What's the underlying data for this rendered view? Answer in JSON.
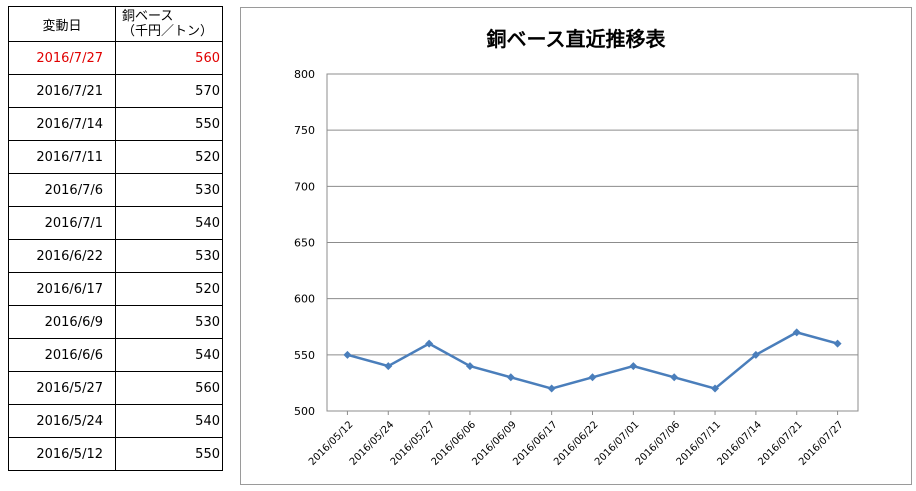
{
  "table": {
    "header_date": "変動日",
    "header_price_line1": "銅ベース",
    "header_price_line2": "（千円／トン）",
    "rows": [
      {
        "date": "2016/7/27",
        "price": "560"
      },
      {
        "date": "2016/7/21",
        "price": "570"
      },
      {
        "date": "2016/7/14",
        "price": "550"
      },
      {
        "date": "2016/7/11",
        "price": "520"
      },
      {
        "date": "2016/7/6",
        "price": "530"
      },
      {
        "date": "2016/7/1",
        "price": "540"
      },
      {
        "date": "2016/6/22",
        "price": "530"
      },
      {
        "date": "2016/6/17",
        "price": "520"
      },
      {
        "date": "2016/6/9",
        "price": "530"
      },
      {
        "date": "2016/6/6",
        "price": "540"
      },
      {
        "date": "2016/5/27",
        "price": "560"
      },
      {
        "date": "2016/5/24",
        "price": "540"
      },
      {
        "date": "2016/5/12",
        "price": "550"
      }
    ],
    "latest_color": "#e00000"
  },
  "chart_data": {
    "type": "line",
    "title": "銅ベース直近推移表",
    "x": [
      "2016/05/12",
      "2016/05/24",
      "2016/05/27",
      "2016/06/06",
      "2016/06/09",
      "2016/06/17",
      "2016/06/22",
      "2016/07/01",
      "2016/07/06",
      "2016/07/11",
      "2016/07/14",
      "2016/07/21",
      "2016/07/27"
    ],
    "series": [
      {
        "values": [
          550,
          540,
          560,
          540,
          530,
          520,
          530,
          540,
          530,
          520,
          550,
          570,
          560
        ],
        "color": "#4a7ebb"
      }
    ],
    "ylim": [
      500,
      800
    ],
    "yticks": [
      500,
      550,
      600,
      650,
      700,
      750,
      800
    ],
    "grid": true,
    "marker": "diamond"
  }
}
